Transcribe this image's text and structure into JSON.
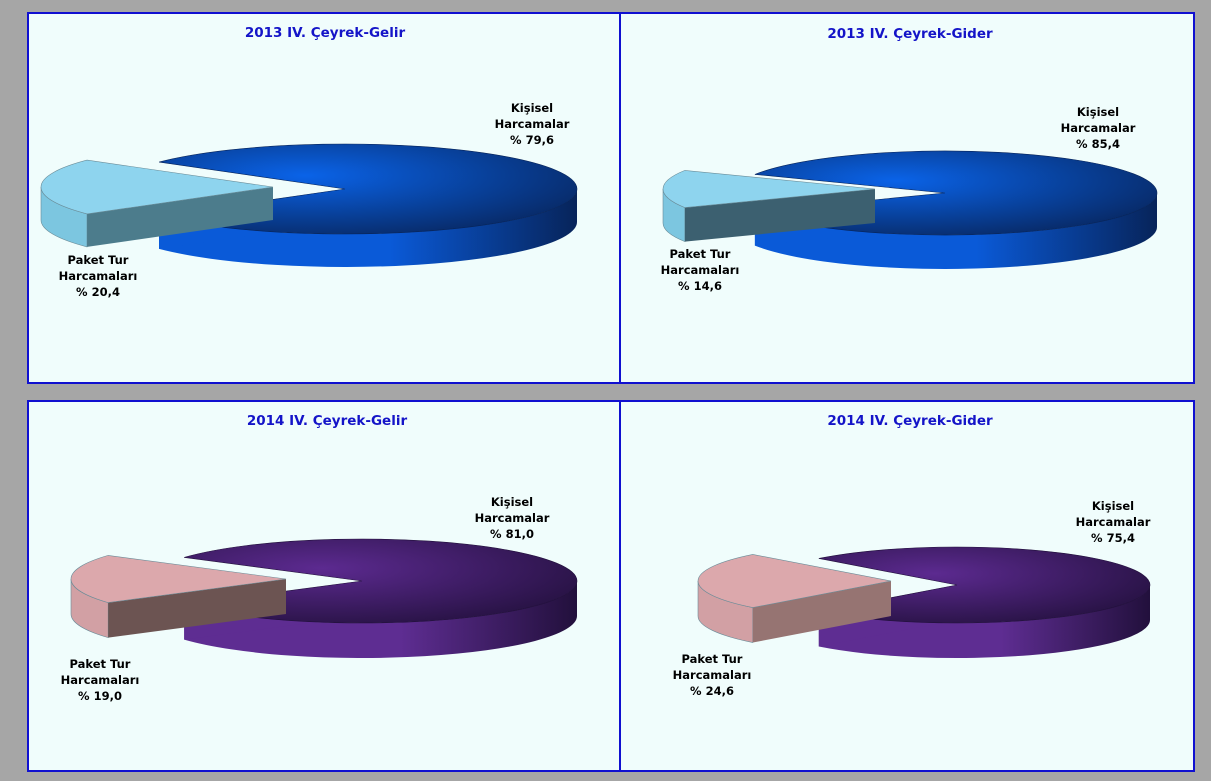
{
  "colors": {
    "gelir_2013": {
      "main_top": "#0a63e8",
      "main_side_light": "#0a5ad8",
      "main_side_dark": "#07245a",
      "minor_top": "#8ed4ee",
      "minor_side": "#7cc6e0",
      "minor_cut": "#4c7c8c"
    },
    "gider_2013": {
      "main_top": "#0a63e8",
      "main_side_light": "#0a5ad8",
      "main_side_dark": "#07245a",
      "minor_top": "#8ed4ee",
      "minor_side": "#7cc6e0",
      "minor_cut": "#3c6070"
    },
    "gelir_2014": {
      "main_top": "#5c2a90",
      "main_side_light": "#5e2d92",
      "main_side_dark": "#22103c",
      "minor_top": "#dca8ac",
      "minor_side": "#d2a0a4",
      "minor_cut": "#6c5452"
    },
    "gider_2014": {
      "main_top": "#5c2a90",
      "main_side_light": "#5e2d92",
      "main_side_dark": "#22103c",
      "minor_top": "#dca8ac",
      "minor_side": "#d2a0a4",
      "minor_cut": "#967472"
    }
  },
  "chart_data": [
    {
      "type": "pie",
      "title": "2013 IV. Çeyrek-Gelir",
      "slices": [
        {
          "label_lines": [
            "Kişisel",
            "Harcamalar",
            "% 79,6"
          ],
          "value": 79.6
        },
        {
          "label_lines": [
            "Paket Tur",
            "Harcamaları",
            "% 20,4"
          ],
          "value": 20.4
        }
      ]
    },
    {
      "type": "pie",
      "title": "2013 IV. Çeyrek-Gider",
      "slices": [
        {
          "label_lines": [
            "Kişisel",
            "Harcamalar",
            "% 85,4"
          ],
          "value": 85.4
        },
        {
          "label_lines": [
            "Paket Tur",
            "Harcamaları",
            "% 14,6"
          ],
          "value": 14.6
        }
      ]
    },
    {
      "type": "pie",
      "title": "2014 IV. Çeyrek-Gelir",
      "slices": [
        {
          "label_lines": [
            "Kişisel",
            "Harcamalar",
            "% 81,0"
          ],
          "value": 81.0
        },
        {
          "label_lines": [
            "Paket Tur",
            "Harcamaları",
            "% 19,0"
          ],
          "value": 19.0
        }
      ]
    },
    {
      "type": "pie",
      "title": "2014 IV. Çeyrek-Gider",
      "slices": [
        {
          "label_lines": [
            "Kişisel",
            "Harcamalar",
            "% 75,4"
          ],
          "value": 75.4
        },
        {
          "label_lines": [
            "Paket Tur",
            "Harcamaları",
            "% 24,6"
          ],
          "value": 24.6
        }
      ]
    }
  ]
}
